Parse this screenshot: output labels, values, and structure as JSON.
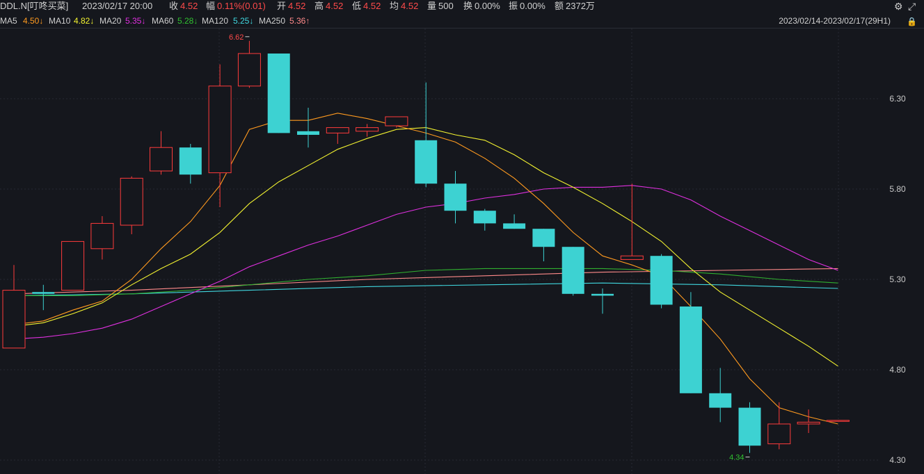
{
  "header": {
    "symbol": "DDL.N[叮咚买菜]",
    "datetime": "2023/02/17 20:00",
    "close_label": "收",
    "close": "4.52",
    "amp_label": "幅",
    "amp": "0.11%(0.01)",
    "open_label": "开",
    "open": "4.52",
    "high_label": "高",
    "high": "4.52",
    "low_label": "低",
    "low": "4.52",
    "avg_label": "均",
    "avg": "4.52",
    "vol_label": "量",
    "vol": "500",
    "turn_label": "换",
    "turn": "0.00%",
    "swing_label": "振",
    "swing": "0.00%",
    "amt_label": "额",
    "amt": "2372万"
  },
  "ma_bar": {
    "ma5": "MA5",
    "ma5_val": "4.50↓",
    "ma10": "MA10",
    "ma10_val": "4.82↓",
    "ma20": "MA20",
    "ma20_val": "5.35↓",
    "ma60": "MA60",
    "ma60_val": "5.28↓",
    "ma120": "MA120",
    "ma120_val": "5.25↓",
    "ma250": "MA250",
    "ma250_val": "5.36↑",
    "range": "2023/02/14-2023/02/17(29H1)"
  },
  "colors": {
    "up": "#ff3b3b",
    "down": "#3dd2d2",
    "ma5": "#ff9a1f",
    "ma10": "#f2f230",
    "ma20": "#e030e0",
    "ma60": "#30b030",
    "ma120": "#40d8e0",
    "ma250": "#ff8a8a"
  },
  "chart_data": {
    "type": "candlestick",
    "y_ticks": [
      "6.30",
      "5.80",
      "5.30",
      "4.80",
      "4.30"
    ],
    "ylim": [
      4.29,
      6.7
    ],
    "annotations": [
      {
        "label": "6.62",
        "candle": 8
      },
      {
        "label": "4.34",
        "candle": 25
      }
    ],
    "candles": [
      {
        "o": 4.92,
        "c": 5.24,
        "h": 5.38,
        "l": 4.92
      },
      {
        "o": 5.23,
        "c": 5.22,
        "h": 5.27,
        "l": 5.13
      },
      {
        "o": 5.24,
        "c": 5.51,
        "h": 5.51,
        "l": 5.24
      },
      {
        "o": 5.47,
        "c": 5.61,
        "h": 5.65,
        "l": 5.41
      },
      {
        "o": 5.6,
        "c": 5.86,
        "h": 5.87,
        "l": 5.55
      },
      {
        "o": 5.9,
        "c": 6.03,
        "h": 6.12,
        "l": 5.88
      },
      {
        "o": 6.03,
        "c": 5.88,
        "h": 6.05,
        "l": 5.83
      },
      {
        "o": 5.89,
        "c": 6.37,
        "h": 6.49,
        "l": 5.7
      },
      {
        "o": 6.37,
        "c": 6.55,
        "h": 6.62,
        "l": 6.36
      },
      {
        "o": 6.55,
        "c": 6.11,
        "h": 6.55,
        "l": 6.11
      },
      {
        "o": 6.12,
        "c": 6.1,
        "h": 6.25,
        "l": 6.03
      },
      {
        "o": 6.11,
        "c": 6.14,
        "h": 6.14,
        "l": 6.05
      },
      {
        "o": 6.12,
        "c": 6.14,
        "h": 6.16,
        "l": 6.09
      },
      {
        "o": 6.15,
        "c": 6.2,
        "h": 6.2,
        "l": 6.14
      },
      {
        "o": 6.07,
        "c": 5.83,
        "h": 6.39,
        "l": 5.81
      },
      {
        "o": 5.83,
        "c": 5.68,
        "h": 5.9,
        "l": 5.61
      },
      {
        "o": 5.68,
        "c": 5.61,
        "h": 5.69,
        "l": 5.57
      },
      {
        "o": 5.61,
        "c": 5.58,
        "h": 5.66,
        "l": 5.58
      },
      {
        "o": 5.58,
        "c": 5.48,
        "h": 5.58,
        "l": 5.4
      },
      {
        "o": 5.48,
        "c": 5.22,
        "h": 5.48,
        "l": 5.21
      },
      {
        "o": 5.22,
        "c": 5.21,
        "h": 5.25,
        "l": 5.11
      },
      {
        "o": 5.41,
        "c": 5.43,
        "h": 5.83,
        "l": 5.41
      },
      {
        "o": 5.43,
        "c": 5.16,
        "h": 5.44,
        "l": 5.14
      },
      {
        "o": 5.15,
        "c": 4.67,
        "h": 5.23,
        "l": 4.67
      },
      {
        "o": 4.67,
        "c": 4.59,
        "h": 4.81,
        "l": 4.51
      },
      {
        "o": 4.59,
        "c": 4.38,
        "h": 4.62,
        "l": 4.34
      },
      {
        "o": 4.39,
        "c": 4.5,
        "h": 4.62,
        "l": 4.36
      },
      {
        "o": 4.5,
        "c": 4.51,
        "h": 4.58,
        "l": 4.45
      },
      {
        "o": 4.52,
        "c": 4.52,
        "h": 4.52,
        "l": 4.52
      }
    ],
    "ma_lines": {
      "ma5": [
        [
          0,
          5.05
        ],
        [
          1,
          5.07
        ],
        [
          2,
          5.13
        ],
        [
          3,
          5.18
        ],
        [
          4,
          5.3
        ],
        [
          5,
          5.47
        ],
        [
          6,
          5.62
        ],
        [
          7,
          5.82
        ],
        [
          8,
          6.13
        ],
        [
          9,
          6.18
        ],
        [
          10,
          6.18
        ],
        [
          11,
          6.22
        ],
        [
          12,
          6.19
        ],
        [
          13,
          6.15
        ],
        [
          14,
          6.11
        ],
        [
          15,
          6.06
        ],
        [
          16,
          5.97
        ],
        [
          17,
          5.86
        ],
        [
          18,
          5.72
        ],
        [
          19,
          5.56
        ],
        [
          20,
          5.43
        ],
        [
          21,
          5.38
        ],
        [
          22,
          5.32
        ],
        [
          23,
          5.15
        ],
        [
          24,
          4.97
        ],
        [
          25,
          4.75
        ],
        [
          26,
          4.59
        ],
        [
          27,
          4.54
        ],
        [
          28,
          4.5
        ]
      ],
      "ma10": [
        [
          0,
          5.04
        ],
        [
          1,
          5.06
        ],
        [
          2,
          5.11
        ],
        [
          3,
          5.17
        ],
        [
          4,
          5.27
        ],
        [
          5,
          5.36
        ],
        [
          6,
          5.44
        ],
        [
          7,
          5.56
        ],
        [
          8,
          5.72
        ],
        [
          9,
          5.84
        ],
        [
          10,
          5.93
        ],
        [
          11,
          6.02
        ],
        [
          12,
          6.08
        ],
        [
          13,
          6.13
        ],
        [
          14,
          6.14
        ],
        [
          15,
          6.1
        ],
        [
          16,
          6.07
        ],
        [
          17,
          5.99
        ],
        [
          18,
          5.89
        ],
        [
          19,
          5.81
        ],
        [
          20,
          5.72
        ],
        [
          21,
          5.62
        ],
        [
          22,
          5.51
        ],
        [
          23,
          5.36
        ],
        [
          24,
          5.23
        ],
        [
          25,
          5.13
        ],
        [
          26,
          5.03
        ],
        [
          27,
          4.93
        ],
        [
          28,
          4.82
        ]
      ],
      "ma20": [
        [
          0,
          4.97
        ],
        [
          1,
          4.98
        ],
        [
          2,
          5.0
        ],
        [
          3,
          5.03
        ],
        [
          4,
          5.08
        ],
        [
          5,
          5.15
        ],
        [
          6,
          5.22
        ],
        [
          7,
          5.29
        ],
        [
          8,
          5.37
        ],
        [
          9,
          5.43
        ],
        [
          10,
          5.49
        ],
        [
          11,
          5.54
        ],
        [
          12,
          5.6
        ],
        [
          13,
          5.66
        ],
        [
          14,
          5.7
        ],
        [
          15,
          5.72
        ],
        [
          16,
          5.75
        ],
        [
          17,
          5.77
        ],
        [
          18,
          5.8
        ],
        [
          19,
          5.81
        ],
        [
          20,
          5.81
        ],
        [
          21,
          5.82
        ],
        [
          22,
          5.8
        ],
        [
          23,
          5.74
        ],
        [
          24,
          5.65
        ],
        [
          25,
          5.57
        ],
        [
          26,
          5.49
        ],
        [
          27,
          5.41
        ],
        [
          28,
          5.35
        ]
      ],
      "ma60": [
        [
          0,
          5.21
        ],
        [
          2,
          5.21
        ],
        [
          4,
          5.22
        ],
        [
          6,
          5.24
        ],
        [
          8,
          5.27
        ],
        [
          10,
          5.3
        ],
        [
          12,
          5.32
        ],
        [
          14,
          5.35
        ],
        [
          16,
          5.36
        ],
        [
          18,
          5.36
        ],
        [
          20,
          5.36
        ],
        [
          22,
          5.35
        ],
        [
          24,
          5.33
        ],
        [
          26,
          5.3
        ],
        [
          28,
          5.28
        ]
      ],
      "ma120": [
        [
          0,
          5.21
        ],
        [
          4,
          5.22
        ],
        [
          8,
          5.24
        ],
        [
          12,
          5.26
        ],
        [
          16,
          5.27
        ],
        [
          20,
          5.28
        ],
        [
          24,
          5.27
        ],
        [
          28,
          5.25
        ]
      ],
      "ma250": [
        [
          0,
          5.22
        ],
        [
          4,
          5.24
        ],
        [
          8,
          5.27
        ],
        [
          12,
          5.3
        ],
        [
          16,
          5.32
        ],
        [
          20,
          5.34
        ],
        [
          24,
          5.35
        ],
        [
          28,
          5.36
        ]
      ]
    }
  }
}
